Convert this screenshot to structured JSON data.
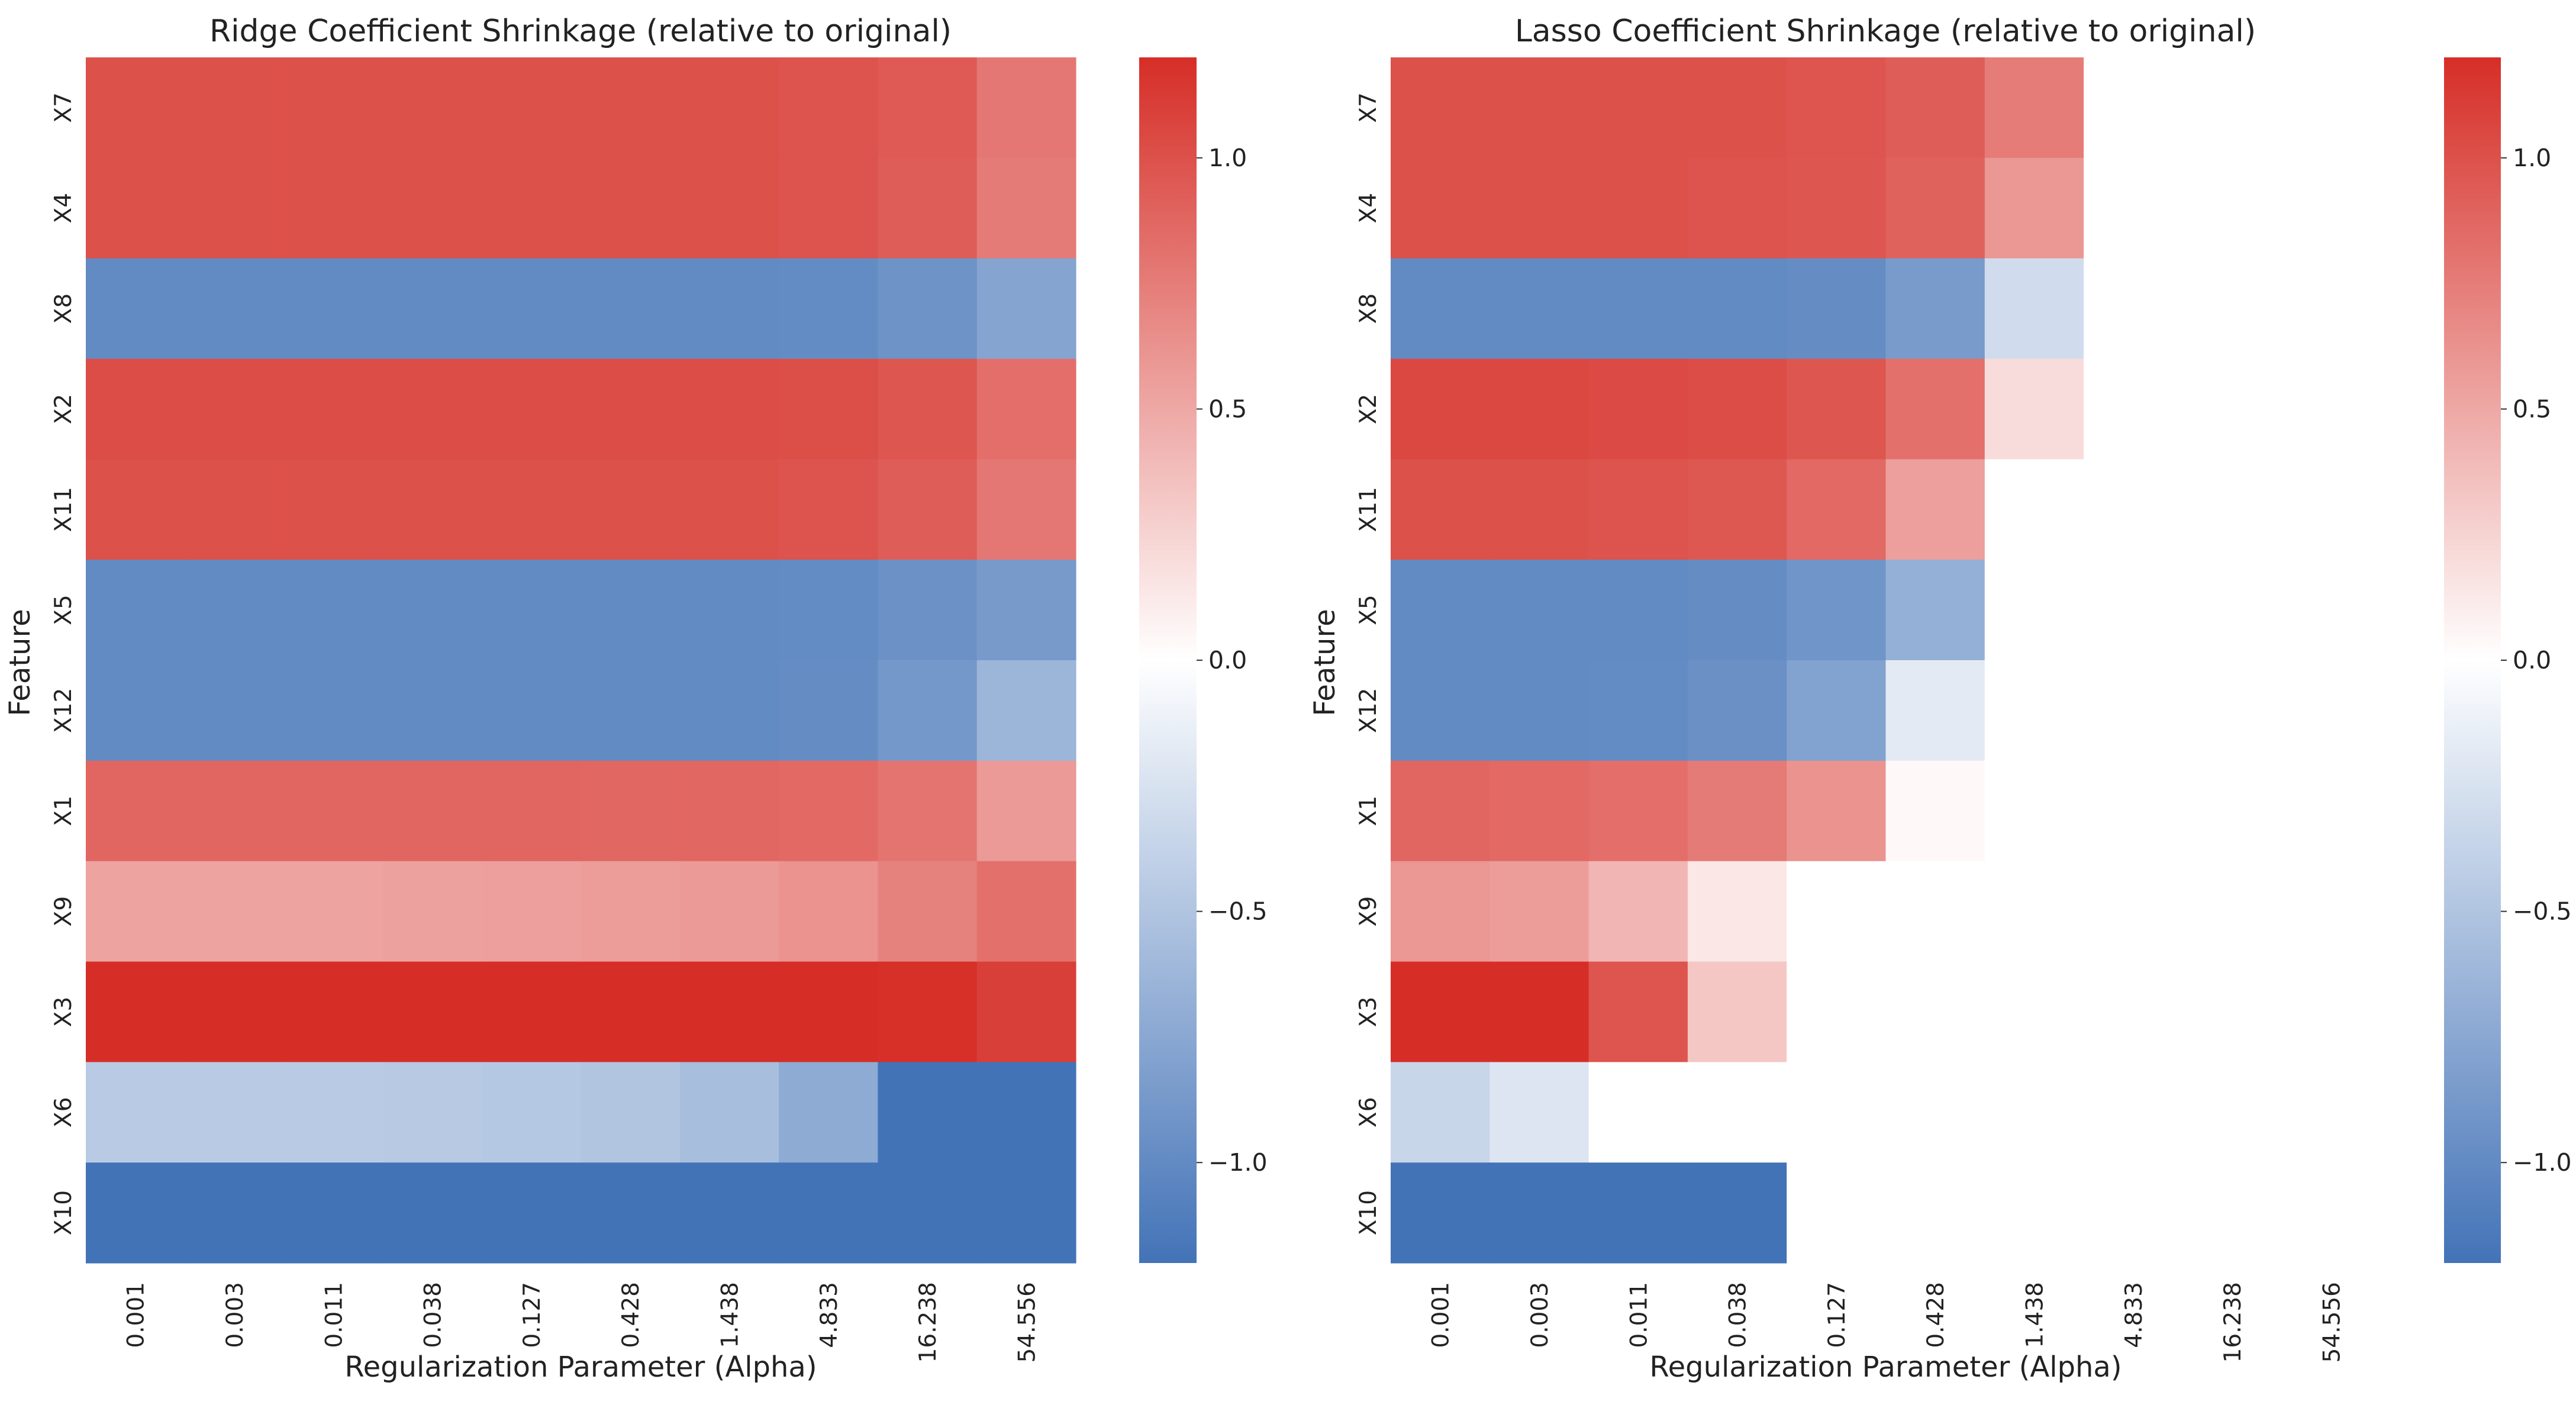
{
  "chart_data": [
    {
      "type": "heatmap",
      "title": "Ridge Coefficient Shrinkage (relative to original)",
      "xlabel": "Regularization Parameter (Alpha)",
      "ylabel": "Feature",
      "x_categories": [
        "0.001",
        "0.003",
        "0.011",
        "0.038",
        "0.127",
        "0.428",
        "1.438",
        "4.833",
        "16.238",
        "54.556"
      ],
      "y_categories": [
        "X7",
        "X4",
        "X8",
        "X2",
        "X11",
        "X5",
        "X12",
        "X1",
        "X9",
        "X3",
        "X6",
        "X10"
      ],
      "values": [
        [
          1.0,
          1.0,
          1.0,
          1.0,
          1.0,
          1.0,
          1.0,
          0.99,
          0.95,
          0.78
        ],
        [
          1.0,
          1.0,
          1.0,
          1.0,
          1.0,
          1.0,
          1.0,
          0.99,
          0.93,
          0.76
        ],
        [
          -1.0,
          -1.0,
          -1.0,
          -1.0,
          -1.0,
          -1.0,
          -1.0,
          -0.99,
          -0.93,
          -0.78
        ],
        [
          1.02,
          1.02,
          1.02,
          1.02,
          1.02,
          1.02,
          1.02,
          1.01,
          0.97,
          0.83
        ],
        [
          1.0,
          1.0,
          1.0,
          1.0,
          1.0,
          1.0,
          1.0,
          0.99,
          0.93,
          0.78
        ],
        [
          -1.0,
          -1.0,
          -1.0,
          -1.0,
          -1.0,
          -1.0,
          -1.0,
          -0.99,
          -0.94,
          -0.87
        ],
        [
          -1.0,
          -1.0,
          -1.0,
          -1.0,
          -1.0,
          -1.0,
          -1.0,
          -0.98,
          -0.88,
          -0.63
        ],
        [
          0.88,
          0.88,
          0.88,
          0.88,
          0.88,
          0.87,
          0.87,
          0.86,
          0.8,
          0.58
        ],
        [
          0.53,
          0.53,
          0.53,
          0.54,
          0.55,
          0.56,
          0.58,
          0.62,
          0.72,
          0.82
        ],
        [
          1.2,
          1.2,
          1.2,
          1.2,
          1.2,
          1.2,
          1.2,
          1.2,
          1.19,
          1.1
        ],
        [
          -0.45,
          -0.45,
          -0.45,
          -0.46,
          -0.47,
          -0.5,
          -0.56,
          -0.72,
          -1.2,
          -1.2
        ],
        [
          -1.2,
          -1.2,
          -1.2,
          -1.2,
          -1.2,
          -1.2,
          -1.2,
          -1.2,
          -1.2,
          -1.2
        ]
      ],
      "colorbar": {
        "ticks": [
          1.0,
          0.5,
          0.0,
          -0.5,
          -1.0
        ],
        "tick_labels": [
          "1.0",
          "0.5",
          "0.0",
          "−0.5",
          "−1.0"
        ],
        "vmin": -1.2,
        "vmax": 1.2
      }
    },
    {
      "type": "heatmap",
      "title": "Lasso Coefficient Shrinkage (relative to original)",
      "xlabel": "Regularization Parameter (Alpha)",
      "ylabel": "Feature",
      "x_categories": [
        "0.001",
        "0.003",
        "0.011",
        "0.038",
        "0.127",
        "0.428",
        "1.438",
        "4.833",
        "16.238",
        "54.556"
      ],
      "y_categories": [
        "X7",
        "X4",
        "X8",
        "X2",
        "X11",
        "X5",
        "X12",
        "X1",
        "X9",
        "X3",
        "X6",
        "X10"
      ],
      "values": [
        [
          1.0,
          1.0,
          1.0,
          1.0,
          0.98,
          0.93,
          0.75,
          0,
          0,
          0
        ],
        [
          1.0,
          1.0,
          1.0,
          0.99,
          0.97,
          0.9,
          0.6,
          0,
          0,
          0
        ],
        [
          -1.0,
          -1.0,
          -1.0,
          -1.0,
          -0.98,
          -0.86,
          -0.3,
          0,
          0,
          0
        ],
        [
          1.05,
          1.05,
          1.04,
          1.02,
          0.97,
          0.82,
          0.2,
          0,
          0,
          0
        ],
        [
          1.0,
          1.0,
          0.99,
          0.96,
          0.86,
          0.55,
          0,
          0,
          0,
          0
        ],
        [
          -1.0,
          -1.0,
          -1.0,
          -0.98,
          -0.91,
          -0.68,
          0,
          0,
          0,
          0
        ],
        [
          -1.0,
          -1.0,
          -0.99,
          -0.95,
          -0.8,
          -0.18,
          0,
          0,
          0,
          0
        ],
        [
          0.88,
          0.86,
          0.83,
          0.76,
          0.62,
          0.04,
          0,
          0,
          0,
          0
        ],
        [
          0.6,
          0.56,
          0.42,
          0.14,
          0,
          0,
          0,
          0,
          0,
          0
        ],
        [
          1.2,
          1.2,
          0.98,
          0.32,
          0,
          0,
          0,
          0,
          0,
          0
        ],
        [
          -0.35,
          -0.22,
          0,
          0,
          0,
          0,
          0,
          0,
          0,
          0
        ],
        [
          -1.2,
          -1.2,
          -1.2,
          -1.2,
          0,
          0,
          0,
          0,
          0,
          0
        ]
      ],
      "colorbar": {
        "ticks": [
          1.0,
          0.5,
          0.0,
          -0.5,
          -1.0
        ],
        "tick_labels": [
          "1.0",
          "0.5",
          "0.0",
          "−0.5",
          "−1.0"
        ],
        "vmin": -1.2,
        "vmax": 1.2
      }
    }
  ],
  "colormap": {
    "low": "#4373b7",
    "mid": "#ffffff",
    "high": "#d62e27"
  }
}
